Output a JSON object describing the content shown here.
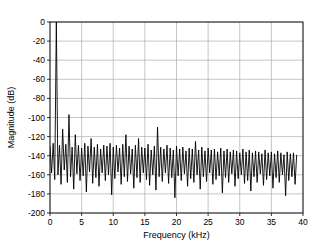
{
  "chart_data": {
    "type": "line",
    "x_label": "Frequency (kHz)",
    "y_label": "Magnitude (dB)",
    "color": "#000000",
    "grid": true,
    "xlim": [
      0,
      40
    ],
    "xticks": [
      0,
      5,
      10,
      15,
      20,
      25,
      30,
      35,
      40
    ],
    "ylim": [
      -200,
      0
    ],
    "yticks": [
      -200,
      -180,
      -160,
      -140,
      -120,
      -100,
      -80,
      -60,
      -40,
      -20,
      0
    ],
    "x": [
      0,
      0.25,
      0.5,
      0.75,
      1,
      1.25,
      1.5,
      1.75,
      2,
      2.25,
      2.5,
      2.75,
      3,
      3.25,
      3.5,
      3.75,
      4,
      4.25,
      4.5,
      4.75,
      5,
      5.25,
      5.5,
      5.75,
      6,
      6.25,
      6.5,
      6.75,
      7,
      7.25,
      7.5,
      7.75,
      8,
      8.25,
      8.5,
      8.75,
      9,
      9.25,
      9.5,
      9.75,
      10,
      10.25,
      10.5,
      10.75,
      11,
      11.25,
      11.5,
      11.75,
      12,
      12.25,
      12.5,
      12.75,
      13,
      13.25,
      13.5,
      13.75,
      14,
      14.25,
      14.5,
      14.75,
      15,
      15.25,
      15.5,
      15.75,
      16,
      16.25,
      16.5,
      16.75,
      17,
      17.25,
      17.5,
      17.75,
      18,
      18.25,
      18.5,
      18.75,
      19,
      19.25,
      19.5,
      19.75,
      20,
      20.25,
      20.5,
      20.75,
      21,
      21.25,
      21.5,
      21.75,
      22,
      22.25,
      22.5,
      22.75,
      23,
      23.25,
      23.5,
      23.75,
      24,
      24.25,
      24.5,
      24.75,
      25,
      25.25,
      25.5,
      25.75,
      26,
      26.25,
      26.5,
      26.75,
      27,
      27.25,
      27.5,
      27.75,
      28,
      28.25,
      28.5,
      28.75,
      29,
      29.25,
      29.5,
      29.75,
      30,
      30.25,
      30.5,
      30.75,
      31,
      31.25,
      31.5,
      31.75,
      32,
      32.25,
      32.5,
      32.75,
      33,
      33.25,
      33.5,
      33.75,
      34,
      34.25,
      34.5,
      34.75,
      35,
      35.25,
      35.5,
      35.75,
      36,
      36.25,
      36.5,
      36.75,
      37,
      37.25,
      37.5,
      37.75,
      38,
      38.25,
      38.5,
      38.75,
      39
    ],
    "values": [
      -130,
      -158,
      -127,
      -165,
      0,
      -160,
      -129,
      -170,
      -112,
      -155,
      -128,
      -168,
      -97,
      -162,
      -131,
      -175,
      -118,
      -159,
      -129,
      -166,
      -132,
      -161,
      -127,
      -178,
      -130,
      -157,
      -122,
      -169,
      -131,
      -163,
      -128,
      -172,
      -133,
      -158,
      -129,
      -166,
      -130,
      -160,
      -127,
      -181,
      -131,
      -164,
      -129,
      -157,
      -132,
      -170,
      -128,
      -162,
      -118,
      -167,
      -130,
      -159,
      -133,
      -174,
      -129,
      -163,
      -122,
      -168,
      -131,
      -158,
      -132,
      -165,
      -128,
      -171,
      -134,
      -160,
      -130,
      -176,
      -110,
      -162,
      -131,
      -167,
      -133,
      -158,
      -129,
      -169,
      -132,
      -163,
      -134,
      -184,
      -130,
      -161,
      -133,
      -166,
      -131,
      -159,
      -135,
      -172,
      -132,
      -164,
      -133,
      -168,
      -125,
      -160,
      -134,
      -175,
      -131,
      -162,
      -135,
      -167,
      -132,
      -158,
      -134,
      -170,
      -133,
      -165,
      -136,
      -161,
      -132,
      -179,
      -135,
      -163,
      -133,
      -168,
      -136,
      -159,
      -134,
      -172,
      -135,
      -164,
      -137,
      -160,
      -133,
      -169,
      -136,
      -166,
      -134,
      -177,
      -137,
      -162,
      -135,
      -168,
      -136,
      -159,
      -138,
      -171,
      -134,
      -165,
      -137,
      -161,
      -136,
      -174,
      -138,
      -163,
      -135,
      -168,
      -137,
      -160,
      -139,
      -182,
      -136,
      -166,
      -138,
      -162,
      -137,
      -170,
      -139
    ]
  }
}
